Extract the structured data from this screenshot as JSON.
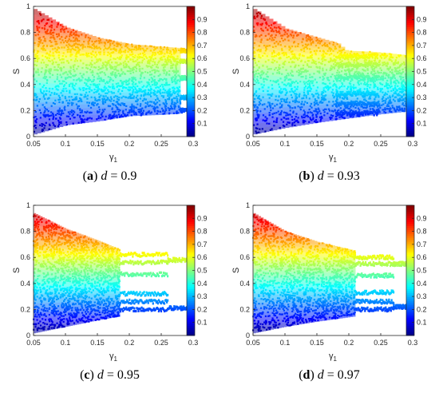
{
  "chart_data": [
    {
      "type": "scatter",
      "panel_label": "a",
      "caption_var": "d",
      "caption_value": "0.9",
      "xlabel_base": "γ",
      "xlabel_sub": "1",
      "ylabel": "S",
      "xlim": [
        0.05,
        0.3
      ],
      "ylim": [
        0,
        1
      ],
      "xticks": [
        "0.05",
        "0.1",
        "0.15",
        "0.2",
        "0.25",
        "0.3"
      ],
      "yticks": [
        "0",
        "0.2",
        "0.4",
        "0.6",
        "0.8",
        "1"
      ],
      "colorbar_ticks": [
        "0.1",
        "0.2",
        "0.3",
        "0.4",
        "0.5",
        "0.6",
        "0.7",
        "0.8",
        "0.9"
      ],
      "colormap": "jet",
      "grid": false,
      "envelope": [
        {
          "x": 0.05,
          "lo": 0.02,
          "hi": 0.98
        },
        {
          "x": 0.1,
          "lo": 0.09,
          "hi": 0.84
        },
        {
          "x": 0.15,
          "lo": 0.12,
          "hi": 0.76
        },
        {
          "x": 0.2,
          "lo": 0.16,
          "hi": 0.71
        },
        {
          "x": 0.25,
          "lo": 0.17,
          "hi": 0.69
        },
        {
          "x": 0.28,
          "lo": 0.18,
          "hi": 0.68
        }
      ],
      "branches": [
        {
          "x_start": 0.28,
          "x_end": 0.3,
          "values": [
            0.2,
            0.3,
            0.45,
            0.58,
            0.66
          ]
        }
      ]
    },
    {
      "type": "scatter",
      "panel_label": "b",
      "caption_var": "d",
      "caption_value": "0.93",
      "xlabel_base": "γ",
      "xlabel_sub": "1",
      "ylabel": "S",
      "xlim": [
        0.05,
        0.3
      ],
      "ylim": [
        0,
        1
      ],
      "xticks": [
        "0.05",
        "0.1",
        "0.15",
        "0.2",
        "0.25",
        "0.3"
      ],
      "yticks": [
        "0",
        "0.2",
        "0.4",
        "0.6",
        "0.8",
        "1"
      ],
      "colorbar_ticks": [
        "0.1",
        "0.2",
        "0.3",
        "0.4",
        "0.5",
        "0.6",
        "0.7",
        "0.8",
        "0.9"
      ],
      "colormap": "jet",
      "grid": false,
      "envelope": [
        {
          "x": 0.05,
          "lo": 0.02,
          "hi": 0.98
        },
        {
          "x": 0.1,
          "lo": 0.07,
          "hi": 0.83
        },
        {
          "x": 0.15,
          "lo": 0.11,
          "hi": 0.76
        },
        {
          "x": 0.18,
          "lo": 0.13,
          "hi": 0.72
        },
        {
          "x": 0.195,
          "lo": 0.14,
          "hi": 0.66
        },
        {
          "x": 0.24,
          "lo": 0.17,
          "hi": 0.65
        },
        {
          "x": 0.3,
          "lo": 0.2,
          "hi": 0.62
        }
      ],
      "branches": [
        {
          "x_start": 0.18,
          "x_end": 0.245,
          "values": [
            0.18,
            0.25,
            0.33,
            0.45,
            0.55,
            0.62
          ]
        }
      ]
    },
    {
      "type": "scatter",
      "panel_label": "c",
      "caption_var": "d",
      "caption_value": "0.95",
      "xlabel_base": "γ",
      "xlabel_sub": "1",
      "ylabel": "S",
      "xlim": [
        0.05,
        0.3
      ],
      "ylim": [
        0,
        1
      ],
      "xticks": [
        "0.05",
        "0.1",
        "0.15",
        "0.2",
        "0.25",
        "0.3"
      ],
      "yticks": [
        "0",
        "0.2",
        "0.4",
        "0.6",
        "0.8",
        "1"
      ],
      "colorbar_ticks": [
        "0.1",
        "0.2",
        "0.3",
        "0.4",
        "0.5",
        "0.6",
        "0.7",
        "0.8",
        "0.9"
      ],
      "colormap": "jet",
      "grid": false,
      "envelope": [
        {
          "x": 0.05,
          "lo": 0.02,
          "hi": 0.94
        },
        {
          "x": 0.1,
          "lo": 0.07,
          "hi": 0.82
        },
        {
          "x": 0.15,
          "lo": 0.12,
          "hi": 0.73
        },
        {
          "x": 0.185,
          "lo": 0.15,
          "hi": 0.66
        }
      ],
      "branches": [
        {
          "x_start": 0.185,
          "x_end": 0.26,
          "values": [
            0.2,
            0.26,
            0.32,
            0.47,
            0.56,
            0.62
          ]
        },
        {
          "x_start": 0.26,
          "x_end": 0.3,
          "values": [
            0.21,
            0.58
          ]
        }
      ]
    },
    {
      "type": "scatter",
      "panel_label": "d",
      "caption_var": "d",
      "caption_value": "0.97",
      "xlabel_base": "γ",
      "xlabel_sub": "1",
      "ylabel": "S",
      "xlim": [
        0.05,
        0.3
      ],
      "ylim": [
        0,
        1
      ],
      "xticks": [
        "0.05",
        "0.1",
        "0.15",
        "0.2",
        "0.25",
        "0.3"
      ],
      "yticks": [
        "0",
        "0.2",
        "0.4",
        "0.6",
        "0.8",
        "1"
      ],
      "colorbar_ticks": [
        "0.1",
        "0.2",
        "0.3",
        "0.4",
        "0.5",
        "0.6",
        "0.7",
        "0.8",
        "0.9"
      ],
      "colormap": "jet",
      "grid": false,
      "envelope": [
        {
          "x": 0.05,
          "lo": 0.02,
          "hi": 0.94
        },
        {
          "x": 0.1,
          "lo": 0.07,
          "hi": 0.8
        },
        {
          "x": 0.15,
          "lo": 0.11,
          "hi": 0.72
        },
        {
          "x": 0.21,
          "lo": 0.15,
          "hi": 0.65
        }
      ],
      "branches": [
        {
          "x_start": 0.21,
          "x_end": 0.27,
          "values": [
            0.2,
            0.26,
            0.33,
            0.46,
            0.55,
            0.6
          ]
        },
        {
          "x_start": 0.27,
          "x_end": 0.3,
          "values": [
            0.22,
            0.55
          ]
        }
      ]
    }
  ]
}
